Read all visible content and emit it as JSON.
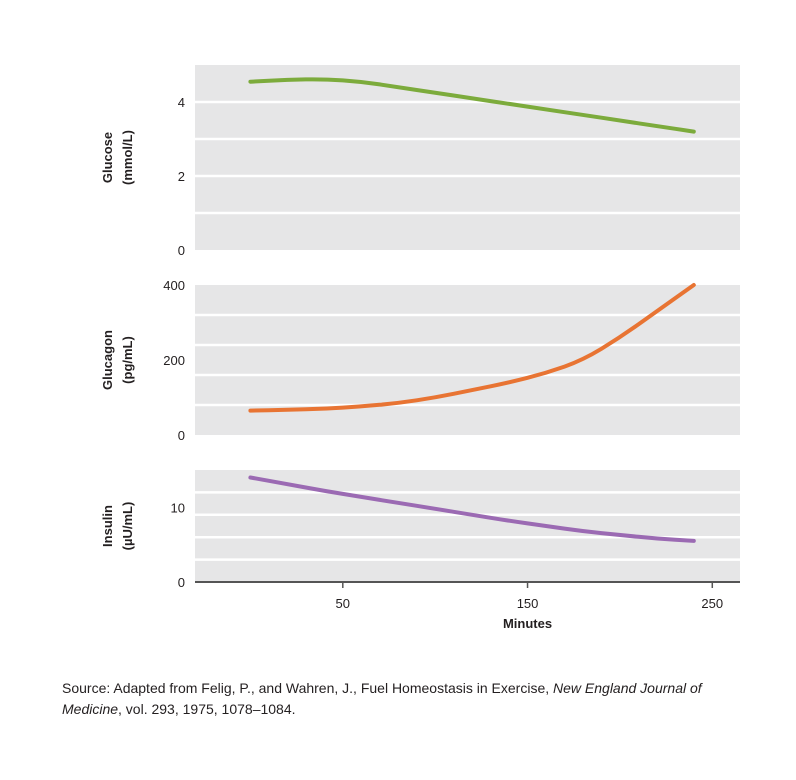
{
  "chart_data": [
    {
      "type": "line",
      "ylabel_lines": [
        "Glucose",
        "(mmol/L)"
      ],
      "ylim": [
        0,
        5
      ],
      "yticks": [
        0,
        2,
        4
      ],
      "xlim": [
        -30,
        265
      ],
      "grid": true,
      "series": [
        {
          "color": "#7cab3c",
          "x": [
            0,
            20,
            40,
            60,
            80,
            100,
            120,
            140,
            160,
            180,
            200,
            220,
            240
          ],
          "y": [
            4.55,
            4.6,
            4.62,
            4.55,
            4.4,
            4.25,
            4.1,
            3.95,
            3.8,
            3.65,
            3.5,
            3.35,
            3.2
          ]
        }
      ]
    },
    {
      "type": "line",
      "ylabel_lines": [
        "Glucagon",
        "(pg/mL)"
      ],
      "ylim": [
        0,
        400
      ],
      "yticks": [
        0,
        200,
        400
      ],
      "xlim": [
        -30,
        265
      ],
      "grid": true,
      "series": [
        {
          "color": "#e87433",
          "x": [
            0,
            20,
            40,
            60,
            80,
            100,
            120,
            140,
            160,
            180,
            200,
            220,
            240
          ],
          "y": [
            65,
            67,
            70,
            76,
            85,
            100,
            120,
            140,
            165,
            200,
            260,
            330,
            400
          ]
        }
      ]
    },
    {
      "type": "line",
      "ylabel_lines": [
        "Insulin",
        "(µU/mL)"
      ],
      "ylim": [
        0,
        15
      ],
      "yticks": [
        0,
        10
      ],
      "xlim": [
        -30,
        265
      ],
      "xticks": [
        50,
        150,
        250
      ],
      "xlabel": "Minutes",
      "grid": true,
      "series": [
        {
          "color": "#9b6ab3",
          "x": [
            0,
            20,
            40,
            60,
            80,
            100,
            120,
            140,
            160,
            180,
            200,
            220,
            240
          ],
          "y": [
            14,
            13.1,
            12.2,
            11.4,
            10.6,
            9.8,
            9.0,
            8.2,
            7.5,
            6.8,
            6.3,
            5.8,
            5.5
          ]
        }
      ]
    }
  ],
  "source": {
    "prefix": "Source: Adapted from Felig, P., and Wahren, J., Fuel Homeostasis in Exercise, ",
    "journal": "New England Journal of Medicine",
    "suffix": ", vol. 293, 1975, 1078–1084."
  }
}
